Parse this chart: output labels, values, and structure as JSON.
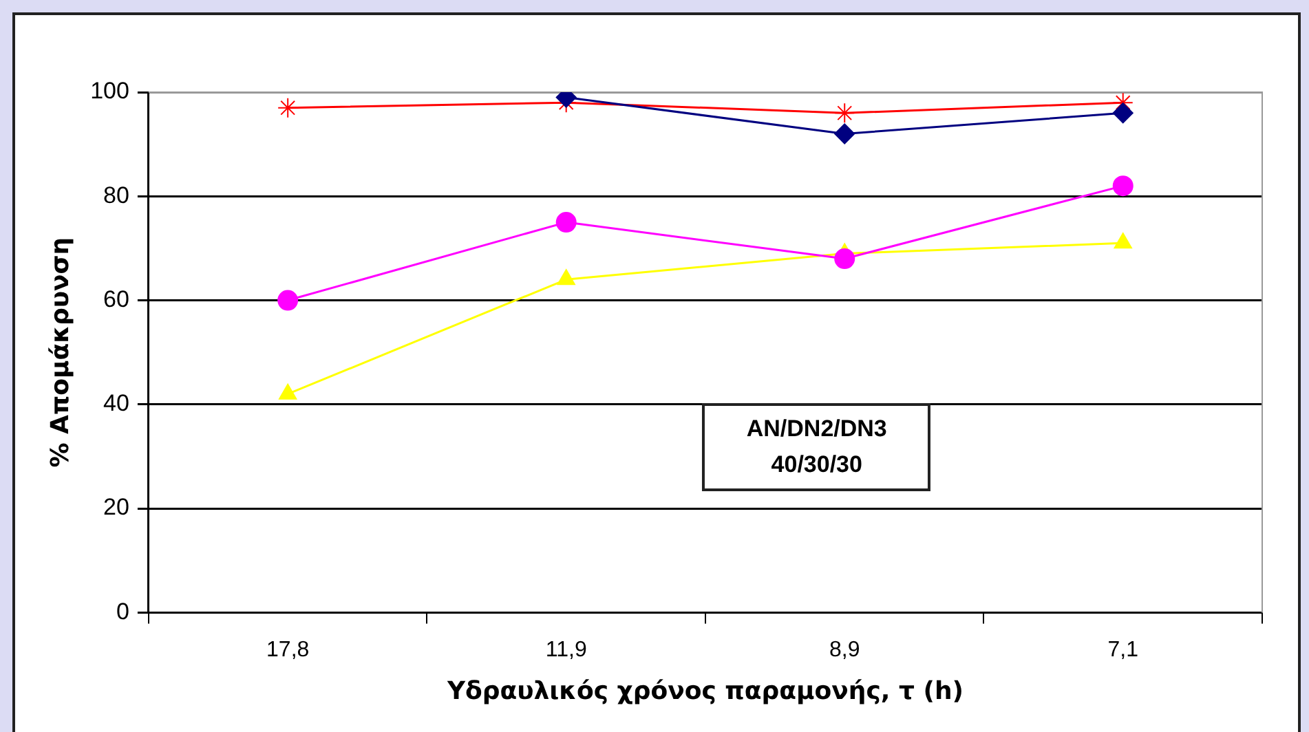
{
  "chart_data": {
    "type": "line",
    "xlabel": "Υδραυλικός χρόνος παραμονής, τ (h)",
    "ylabel": "% Απομάκρυνση",
    "categories": [
      "17,8",
      "11,9",
      "8,9",
      "7,1"
    ],
    "series": [
      {
        "color": "#000080",
        "marker": "diamond",
        "values": [
          null,
          99,
          92,
          96
        ]
      },
      {
        "color": "#ff0000",
        "marker": "cross",
        "values": [
          97,
          98,
          96,
          98
        ]
      },
      {
        "color": "#ff00ff",
        "marker": "circle",
        "values": [
          60,
          75,
          68,
          82
        ]
      },
      {
        "color": "#ffff00",
        "marker": "triangle",
        "values": [
          42,
          64,
          69,
          71
        ]
      }
    ],
    "ylim": [
      0,
      100
    ],
    "yticks": [
      0,
      20,
      40,
      60,
      80,
      100
    ],
    "grid": "y",
    "legend": false,
    "line_style": "solid",
    "annotations": [
      "AN/DN2/DN3\n40/30/30"
    ]
  }
}
